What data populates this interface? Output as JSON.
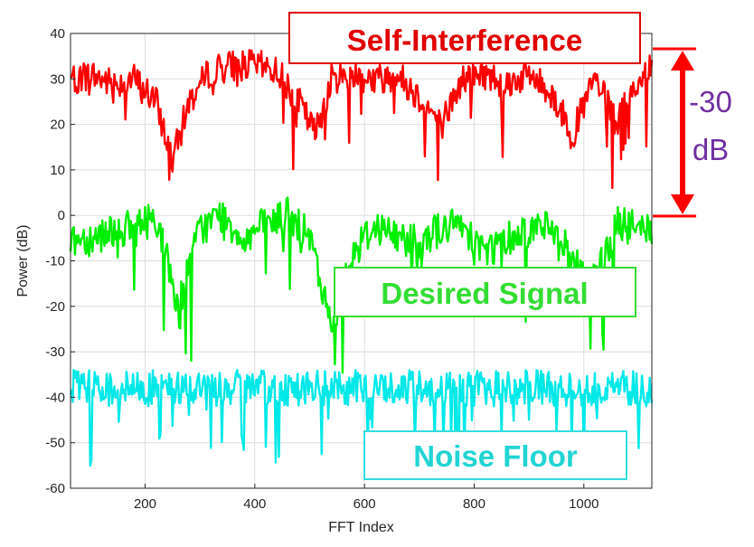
{
  "chart_data": {
    "type": "line",
    "xlabel": "FFT Index",
    "ylabel": "Power (dB)",
    "xlim": [
      64,
      1124
    ],
    "ylim": [
      -60,
      40
    ],
    "xticks": [
      200,
      400,
      600,
      800,
      1000
    ],
    "yticks": [
      40,
      30,
      20,
      10,
      0,
      -10,
      -20,
      -30,
      -40,
      -50,
      -60
    ],
    "grid": true,
    "series": [
      {
        "name": "Self-Interference",
        "color": "#ff0000",
        "x": [
          64,
          100,
          140,
          180,
          220,
          250,
          280,
          320,
          360,
          400,
          440,
          480,
          510,
          540,
          580,
          620,
          660,
          700,
          740,
          780,
          820,
          860,
          900,
          940,
          980,
          1020,
          1060,
          1100,
          1124
        ],
        "y": [
          30,
          31,
          29,
          30,
          25,
          12,
          25,
          32,
          33,
          33,
          32,
          25,
          18,
          30,
          31,
          30,
          31,
          26,
          20,
          30,
          31,
          29,
          31,
          27,
          18,
          30,
          20,
          30,
          32
        ]
      },
      {
        "name": "Desired Signal",
        "color": "#00ee00",
        "x": [
          64,
          100,
          140,
          180,
          220,
          260,
          300,
          340,
          380,
          420,
          460,
          500,
          540,
          580,
          620,
          660,
          700,
          740,
          780,
          820,
          860,
          900,
          940,
          980,
          1020,
          1060,
          1100,
          1124
        ],
        "y": [
          -5,
          -5,
          -3,
          -3,
          0,
          -20,
          -3,
          0,
          -5,
          -2,
          0,
          -5,
          -25,
          -8,
          -2,
          -5,
          -5,
          -3,
          -2,
          -8,
          -5,
          -3,
          -2,
          -10,
          -15,
          -2,
          -3,
          -3
        ]
      },
      {
        "name": "Noise Floor",
        "color": "#00e8e8",
        "x": [
          64,
          1124
        ],
        "y": [
          -38,
          -38
        ]
      }
    ],
    "annotations": {
      "self_interference": "Self-Interference",
      "desired_signal": "Desired Signal",
      "noise_floor": "Noise Floor",
      "gap_value": "-30",
      "gap_unit": "dB"
    }
  }
}
